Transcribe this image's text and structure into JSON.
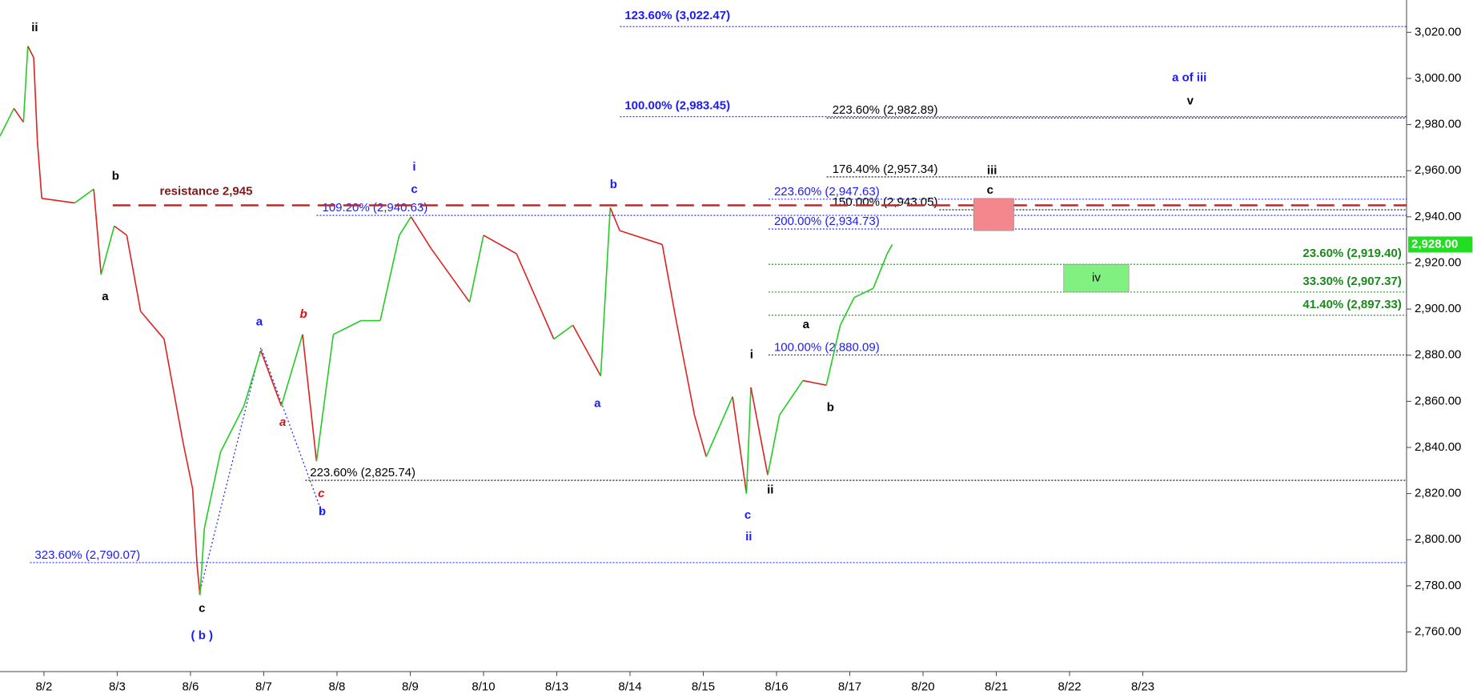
{
  "chart_data": {
    "type": "line",
    "xlim": [
      -0.6,
      18.6
    ],
    "ylim": [
      2743,
      3034
    ],
    "xticks": [
      {
        "value": 0,
        "label": "8/2"
      },
      {
        "value": 1,
        "label": "8/3"
      },
      {
        "value": 2,
        "label": "8/6"
      },
      {
        "value": 3,
        "label": "8/7"
      },
      {
        "value": 4,
        "label": "8/8"
      },
      {
        "value": 5,
        "label": "8/9"
      },
      {
        "value": 6,
        "label": "8/10"
      },
      {
        "value": 7,
        "label": "8/13"
      },
      {
        "value": 8,
        "label": "8/14"
      },
      {
        "value": 9,
        "label": "8/15"
      },
      {
        "value": 10,
        "label": "8/16"
      },
      {
        "value": 11,
        "label": "8/17"
      },
      {
        "value": 12,
        "label": "8/20"
      },
      {
        "value": 13,
        "label": "8/21"
      },
      {
        "value": 14,
        "label": "8/22"
      },
      {
        "value": 15,
        "label": "8/23"
      }
    ],
    "yticks": [
      {
        "value": 2760,
        "label": "2,760.00"
      },
      {
        "value": 2780,
        "label": "2,780.00"
      },
      {
        "value": 2800,
        "label": "2,800.00"
      },
      {
        "value": 2820,
        "label": "2,820.00"
      },
      {
        "value": 2840,
        "label": "2,840.00"
      },
      {
        "value": 2860,
        "label": "2,860.00"
      },
      {
        "value": 2880,
        "label": "2,880.00"
      },
      {
        "value": 2900,
        "label": "2,900.00"
      },
      {
        "value": 2920,
        "label": "2,920.00"
      },
      {
        "value": 2940,
        "label": "2,940.00"
      },
      {
        "value": 2960,
        "label": "2,960.00"
      },
      {
        "value": 2980,
        "label": "2,980.00"
      },
      {
        "value": 3000,
        "label": "3,000.00"
      },
      {
        "value": 3020,
        "label": "3,020.00"
      }
    ],
    "series": [
      {
        "up_color": "#22cc22",
        "down_color": "#dd2222",
        "x": [
          -0.6,
          -0.41,
          -0.28,
          -0.22,
          -0.14,
          -0.09,
          -0.03,
          0.42,
          0.68,
          0.78,
          0.96,
          1.13,
          1.32,
          1.64,
          1.9,
          2.03,
          2.09,
          2.13,
          2.19,
          2.41,
          2.73,
          2.96,
          3.24,
          3.53,
          3.72,
          3.95,
          4.33,
          4.59,
          4.85,
          5.01,
          5.29,
          5.81,
          6,
          6.45,
          6.96,
          7.22,
          7.6,
          7.73,
          7.86,
          8.44,
          8.63,
          8.88,
          9.04,
          9.4,
          9.59,
          9.65,
          9.88,
          10.04,
          10.36,
          10.68,
          10.87,
          11.06,
          11.32,
          11.51,
          11.58
        ],
        "values": [
          2975,
          2987,
          2981,
          3014,
          3009,
          2973,
          2948,
          2946,
          2952,
          2915,
          2936,
          2932,
          2899,
          2887,
          2842,
          2822,
          2789,
          2776,
          2805,
          2838,
          2858,
          2882,
          2858,
          2889,
          2834,
          2889,
          2895,
          2895,
          2932,
          2940,
          2926,
          2903,
          2932,
          2924,
          2887,
          2893,
          2871,
          2944,
          2934,
          2928,
          2895,
          2854,
          2836,
          2862,
          2820,
          2866,
          2828,
          2854,
          2869,
          2867,
          2893,
          2905,
          2909,
          2924,
          2928
        ]
      }
    ],
    "last": {
      "value": 2928,
      "label": "2,928.00"
    },
    "resistance": {
      "value": 2945,
      "label": "resistance 2,945"
    },
    "levels": [
      {
        "value": 3022.47,
        "label": "123.60% (3,022.47)",
        "color": "#1a1aff"
      },
      {
        "value": 2983.45,
        "label": "100.00% (2,983.45)",
        "color": "#1a1aff"
      },
      {
        "value": 2982.89,
        "label": "223.60% (2,982.89)",
        "color": "#000000"
      },
      {
        "value": 2957.34,
        "label": "176.40% (2,957.34)",
        "color": "#000000"
      },
      {
        "value": 2947.63,
        "label": "223.60% (2,947.63)",
        "color": "#1a1aff"
      },
      {
        "value": 2943.05,
        "label": "150.00% (2,943.05)",
        "color": "#000000"
      },
      {
        "value": 2940.63,
        "label": "109.20% (2,940.63)",
        "color": "#1a1aff"
      },
      {
        "value": 2934.73,
        "label": "200.00% (2,934.73)",
        "color": "#1a1aff"
      },
      {
        "value": 2919.4,
        "label": "23.60% (2,919.40)",
        "color": "#1a8a1a"
      },
      {
        "value": 2907.37,
        "label": "33.30% (2,907.37)",
        "color": "#1a8a1a"
      },
      {
        "value": 2897.33,
        "label": "41.40% (2,897.33)",
        "color": "#1a8a1a"
      },
      {
        "value": 2880.09,
        "label": "100.00% (2,880.09)",
        "color": "#1a1aff"
      },
      {
        "value": 2825.74,
        "label": "223.60% (2,825.74)",
        "color": "#000000"
      },
      {
        "value": 2790.07,
        "label": "323.60% (2,790.07)",
        "color": "#1a1aff"
      }
    ],
    "zones": [
      {
        "x": [
          12.69,
          13.24
        ],
        "top": 2948,
        "bottom": 2934,
        "color": "#f4878e"
      },
      {
        "x": [
          13.92,
          14.81
        ],
        "top": 2919.4,
        "bottom": 2907.37,
        "color": "#80f080",
        "label": "iv"
      }
    ],
    "annotations": [
      {
        "text": "ii",
        "color": "#000000"
      },
      {
        "text": "b",
        "color": "#000000"
      },
      {
        "text": "a",
        "color": "#000000"
      },
      {
        "text": "c",
        "color": "#000000"
      },
      {
        "text": "( b )",
        "color": "#1a1aff"
      },
      {
        "text": "a",
        "color": "#1a1aff"
      },
      {
        "text": "b",
        "color": "#dd1111"
      },
      {
        "text": "a",
        "color": "#dd1111"
      },
      {
        "text": "c",
        "color": "#dd1111"
      },
      {
        "text": "b",
        "color": "#1a1aff"
      },
      {
        "text": "i",
        "color": "#1a1aff"
      },
      {
        "text": "c",
        "color": "#1a1aff"
      },
      {
        "text": "b",
        "color": "#1a1aff"
      },
      {
        "text": "a",
        "color": "#1a1aff"
      },
      {
        "text": "i",
        "color": "#000000"
      },
      {
        "text": "ii",
        "color": "#000000"
      },
      {
        "text": "c",
        "color": "#1a1aff"
      },
      {
        "text": "ii",
        "color": "#1a1aff"
      },
      {
        "text": "a",
        "color": "#000000"
      },
      {
        "text": "b",
        "color": "#000000"
      },
      {
        "text": "iii",
        "color": "#000000"
      },
      {
        "text": "c",
        "color": "#000000"
      },
      {
        "text": "a of iii",
        "color": "#1a1aff"
      },
      {
        "text": "v",
        "color": "#000000"
      }
    ]
  }
}
